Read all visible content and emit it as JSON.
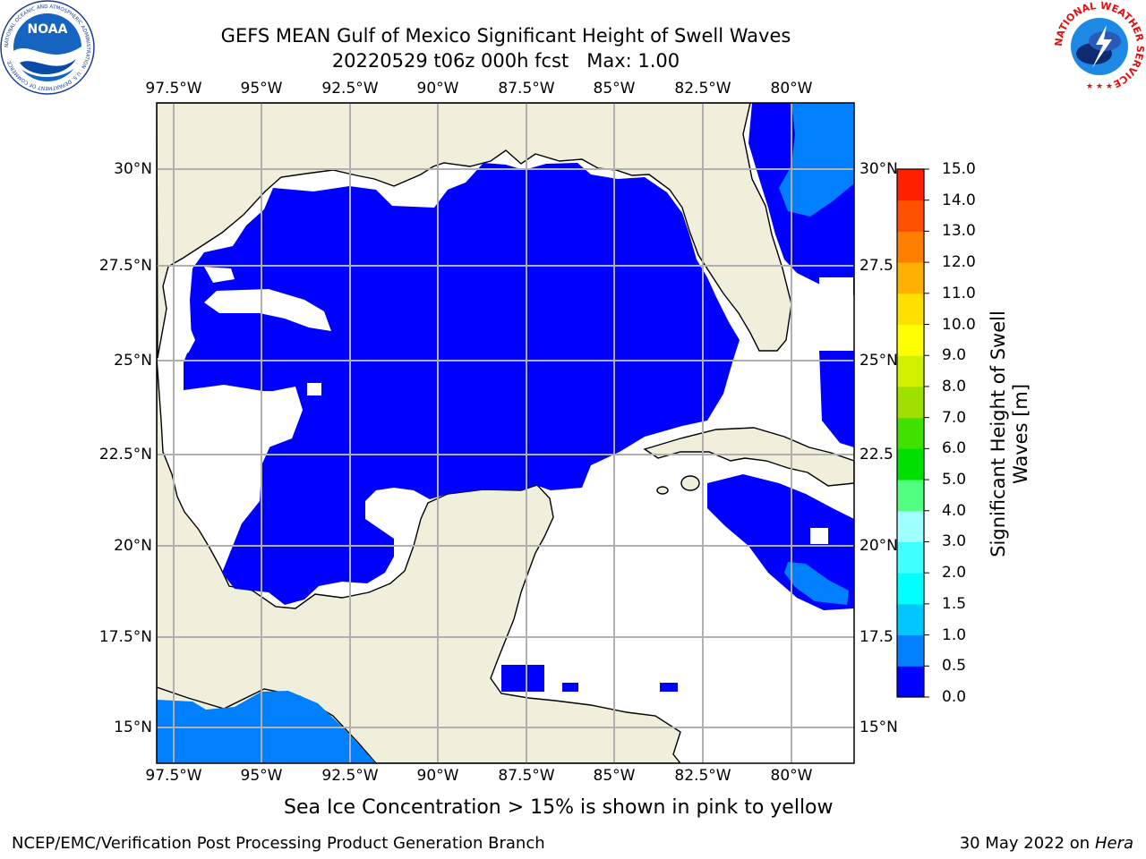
{
  "title": {
    "line1": "GEFS MEAN Gulf of Mexico Significant Height of Swell Waves",
    "line2": "20220529 t06z 000h fcst   Max: 1.00"
  },
  "map": {
    "lon_labels": [
      "97.5°W",
      "95°W",
      "92.5°W",
      "90°W",
      "87.5°W",
      "85°W",
      "82.5°W",
      "80°W"
    ],
    "lat_labels_left": [
      "30°N",
      "27.5°N",
      "25°N",
      "22.5°N",
      "20°N",
      "17.5°N",
      "15°N"
    ],
    "lat_labels_right": [
      "30°N",
      "27.5",
      "25°N",
      "22.5",
      "20°N",
      "17.5",
      "15°N"
    ],
    "colors": {
      "land": "#efefdc",
      "wave_0": "#0000ff",
      "wave_05": "#0080ff",
      "grid": "#b0b0b0"
    }
  },
  "colorbar": {
    "label_line1": "Significant Height of Swell",
    "label_line2": "Waves [m]",
    "ticks": [
      "0.0",
      "0.5",
      "1.0",
      "1.5",
      "2.0",
      "3.0",
      "4.0",
      "5.0",
      "6.0",
      "7.0",
      "8.0",
      "9.0",
      "10.0",
      "11.0",
      "12.0",
      "13.0",
      "14.0",
      "15.0"
    ],
    "colors": [
      "#0000ff",
      "#0080ff",
      "#00c8ff",
      "#00ffff",
      "#40ffff",
      "#a0ffff",
      "#50ff80",
      "#00e000",
      "#40e000",
      "#a0e000",
      "#d0f000",
      "#ffff00",
      "#ffe000",
      "#ffb000",
      "#ff8000",
      "#ff5000",
      "#ff2000",
      "#ff0000"
    ]
  },
  "caption": "Sea Ice Concentration > 15% is shown in pink to yellow",
  "footer": {
    "left": "NCEP/EMC/Verification Post Processing Product Generation Branch",
    "right_date": "30 May 2022 on",
    "right_host": "Hera"
  },
  "logos": {
    "noaa_text": "NOAA",
    "noaa_ring": "NATIONAL OCEANIC AND ATMOSPHERIC ADMINISTRATION · U.S. DEPARTMENT OF COMMERCE",
    "nws_ring": "NATIONAL WEATHER SERVICE"
  }
}
